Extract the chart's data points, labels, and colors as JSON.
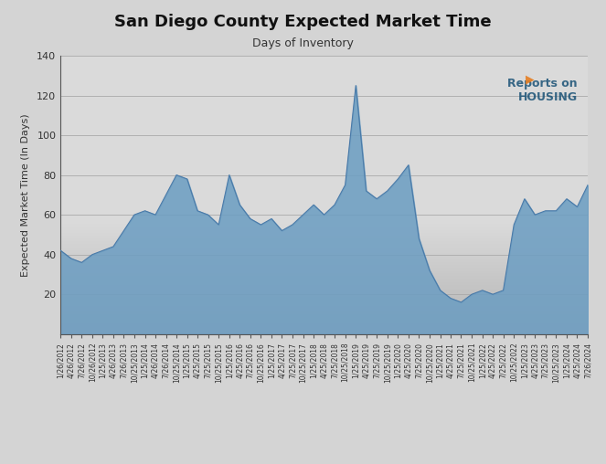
{
  "title": "San Diego County Expected Market Time",
  "subtitle": "Days of Inventory",
  "ylabel": "Expected Market Time (In Days)",
  "ylim": [
    0,
    140
  ],
  "yticks": [
    20,
    40,
    60,
    80,
    100,
    120,
    140
  ],
  "fill_color": "#6b9dc2",
  "fill_alpha": 0.85,
  "line_color": "#4a7aa8",
  "bg_color_plot": "#d8d8d8",
  "bg_gradient_top": "#e8e8e8",
  "bg_gradient_bottom": "#c0c0c0",
  "data": {
    "dates": [
      "1/26/2012",
      "4/26/2012",
      "7/26/2012",
      "10/26/2012",
      "1/25/2013",
      "4/26/2013",
      "7/26/2013",
      "10/25/2013",
      "1/25/2014",
      "4/26/2014",
      "7/26/2014",
      "10/25/2014",
      "1/25/2015",
      "4/25/2015",
      "7/25/2015",
      "10/25/2015",
      "1/25/2016",
      "4/25/2016",
      "7/25/2016",
      "10/25/2016",
      "1/25/2017",
      "4/25/2017",
      "7/25/2017",
      "10/25/2017",
      "1/25/2018",
      "4/25/2018",
      "7/25/2018",
      "10/25/2018",
      "1/25/2019",
      "4/25/2019",
      "7/25/2019",
      "10/25/2019",
      "1/25/2020",
      "4/25/2020",
      "7/25/2020",
      "10/25/2020",
      "1/25/2021",
      "4/25/2021",
      "7/25/2021",
      "10/25/2021",
      "1/25/2022",
      "4/25/2022",
      "7/25/2022",
      "10/25/2022",
      "1/25/2023",
      "4/25/2023",
      "7/25/2023",
      "10/25/2023",
      "1/25/2024",
      "4/25/2024",
      "7/26/2024"
    ],
    "values": [
      42,
      38,
      36,
      40,
      42,
      44,
      52,
      60,
      62,
      60,
      70,
      80,
      78,
      62,
      60,
      55,
      80,
      65,
      58,
      55,
      58,
      52,
      55,
      60,
      65,
      60,
      65,
      75,
      125,
      72,
      68,
      72,
      78,
      85,
      48,
      32,
      22,
      18,
      16,
      20,
      22,
      20,
      22,
      55,
      68,
      60,
      62,
      62,
      68,
      64,
      75
    ]
  },
  "xtick_dates": [
    "1/26/2012",
    "4/26/2012",
    "7/26/2012",
    "10/26/2012",
    "1/25/2013",
    "4/26/2013",
    "7/26/2013",
    "10/25/2013",
    "1/25/2014",
    "4/26/2014",
    "7/26/2014",
    "10/25/2014",
    "1/25/2015",
    "4/25/2015",
    "7/25/2015",
    "10/25/2015",
    "1/25/2016",
    "4/25/2016",
    "7/25/2016",
    "10/25/2016",
    "1/25/2017",
    "4/25/2017",
    "7/25/2017",
    "10/25/2017",
    "1/25/2018",
    "4/25/2018",
    "7/25/2018",
    "10/25/2018",
    "1/25/2019",
    "4/25/2019",
    "7/25/2019",
    "10/25/2019",
    "1/25/2020",
    "4/25/2020",
    "7/25/2020",
    "10/25/2020",
    "1/25/2021",
    "4/25/2021",
    "7/25/2021",
    "10/25/2021",
    "1/25/2022",
    "4/25/2022",
    "7/25/2022",
    "10/25/2022",
    "1/25/2023",
    "4/25/2023",
    "7/25/2023",
    "10/25/2023",
    "1/25/2024",
    "4/25/2024",
    "7/26/2024"
  ]
}
